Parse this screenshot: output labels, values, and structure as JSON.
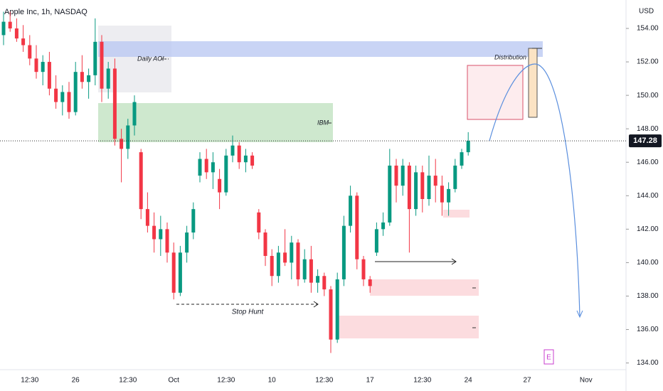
{
  "chart_data": {
    "type": "candlestick",
    "title": "Apple Inc, 1h, NASDAQ",
    "currency": "USD",
    "categories": [
      null,
      null,
      null,
      null,
      "12:30",
      null,
      null,
      null,
      null,
      null,
      null,
      "26",
      null,
      null,
      null,
      null,
      null,
      null,
      null,
      "12:30",
      null,
      null,
      null,
      null,
      null,
      null,
      "Oct",
      null,
      null,
      null,
      null,
      null,
      null,
      null,
      "12:30",
      null,
      null,
      null,
      null,
      null,
      null,
      "10",
      null,
      null,
      null,
      null,
      null,
      null,
      null,
      "12:30",
      null,
      null,
      null,
      null,
      null,
      null,
      "17",
      null,
      null,
      null,
      null,
      null,
      null,
      null,
      "12:30",
      null,
      null,
      null,
      null,
      null,
      null,
      "24",
      null,
      null,
      null,
      null,
      null,
      null,
      null,
      null,
      "27",
      null,
      null,
      null,
      null,
      null,
      null,
      null,
      null,
      "Nov"
    ],
    "open": [
      153.6,
      154.4,
      154.0,
      153.4,
      153.0,
      152.2,
      151.4,
      152.0,
      150.4,
      149.6,
      150.2,
      149.0,
      151.4,
      150.8,
      151.2,
      153.2,
      150.4,
      151.6,
      147.4,
      146.8,
      148.2,
      146.6,
      143.2,
      142.2,
      141.4,
      142.0,
      140.6,
      138.2,
      140.6,
      141.8,
      145.2,
      146.2,
      145.4,
      145.0,
      144.2,
      146.4,
      147.0,
      146.0,
      146.4,
      143.0,
      141.8,
      140.4,
      139.2,
      140.6,
      140.0,
      141.2,
      139.0,
      140.2,
      138.8,
      139.2,
      138.4,
      135.4,
      139.0,
      142.2,
      144.0,
      140.2,
      139.0,
      140.6,
      142.0,
      142.4,
      145.8,
      144.6,
      145.8,
      143.2,
      145.4,
      143.8,
      145.2,
      144.6,
      143.6,
      144.4,
      145.8,
      146.6,
      null,
      null,
      null,
      null,
      null,
      null,
      null,
      null,
      null,
      null,
      null,
      null,
      null,
      null,
      null,
      null,
      null,
      null
    ],
    "high": [
      155.0,
      155.0,
      154.6,
      154.2,
      153.6,
      153.0,
      152.4,
      152.6,
      151.2,
      150.6,
      150.8,
      152.0,
      152.4,
      151.6,
      154.6,
      153.6,
      152.0,
      152.2,
      148.0,
      148.6,
      150.0,
      146.8,
      144.2,
      143.0,
      142.8,
      142.4,
      141.2,
      141.0,
      142.2,
      143.6,
      146.6,
      146.8,
      146.6,
      145.6,
      146.8,
      147.6,
      147.2,
      146.8,
      146.6,
      143.2,
      142.0,
      140.8,
      141.0,
      142.0,
      141.6,
      141.4,
      140.8,
      141.0,
      139.6,
      139.4,
      138.6,
      139.4,
      142.8,
      144.6,
      144.2,
      140.4,
      139.2,
      142.4,
      143.0,
      146.8,
      146.2,
      146.2,
      146.0,
      145.8,
      145.8,
      146.4,
      146.2,
      145.2,
      144.8,
      146.2,
      146.8,
      147.8,
      null,
      null,
      null,
      null,
      null,
      null,
      null,
      null,
      null,
      null,
      null,
      null,
      null,
      null,
      null,
      null,
      null,
      null
    ],
    "low": [
      153.0,
      153.8,
      153.2,
      152.6,
      151.8,
      151.0,
      150.6,
      150.0,
      149.2,
      148.8,
      148.6,
      148.8,
      150.4,
      149.8,
      150.6,
      149.6,
      149.8,
      147.0,
      144.8,
      146.2,
      147.6,
      142.6,
      141.8,
      140.6,
      140.4,
      140.0,
      137.8,
      138.0,
      140.0,
      141.4,
      144.8,
      145.0,
      144.4,
      143.2,
      144.0,
      146.0,
      145.6,
      145.4,
      145.6,
      141.4,
      139.8,
      138.6,
      138.8,
      139.8,
      139.0,
      138.6,
      138.8,
      138.2,
      138.2,
      138.0,
      134.6,
      135.2,
      138.6,
      141.8,
      139.6,
      138.6,
      138.2,
      140.4,
      141.6,
      142.2,
      143.6,
      144.0,
      140.6,
      142.8,
      143.0,
      143.4,
      143.6,
      142.8,
      142.8,
      144.2,
      145.6,
      146.4,
      null,
      null,
      null,
      null,
      null,
      null,
      null,
      null,
      null,
      null,
      null,
      null,
      null,
      null,
      null,
      null,
      null,
      null
    ],
    "close": [
      154.4,
      154.0,
      153.4,
      153.0,
      152.2,
      151.4,
      152.0,
      150.4,
      149.6,
      150.2,
      149.0,
      151.4,
      150.8,
      151.2,
      153.2,
      150.4,
      151.6,
      147.4,
      146.8,
      148.2,
      149.6,
      143.2,
      142.2,
      141.4,
      142.0,
      140.6,
      138.2,
      140.6,
      141.8,
      143.2,
      146.2,
      145.4,
      146.0,
      144.2,
      146.4,
      147.0,
      146.0,
      146.4,
      145.8,
      141.8,
      140.4,
      139.2,
      140.6,
      140.0,
      141.2,
      139.0,
      140.2,
      138.8,
      139.2,
      138.4,
      135.4,
      139.0,
      142.2,
      144.0,
      140.2,
      139.0,
      138.6,
      142.0,
      142.4,
      145.8,
      144.6,
      145.8,
      143.2,
      145.4,
      143.8,
      145.2,
      144.6,
      143.6,
      144.4,
      145.8,
      146.6,
      147.28,
      null,
      null,
      null,
      null,
      null,
      null,
      null,
      null,
      null,
      null,
      null,
      null,
      null,
      null,
      null,
      null,
      null,
      null
    ],
    "up_color": "#089981",
    "down_color": "#f23645",
    "last_price": 147.28,
    "ylim": [
      133.6,
      155.7
    ],
    "yticks": [
      {
        "value": 134,
        "label": "134.00"
      },
      {
        "value": 136,
        "label": "136.00"
      },
      {
        "value": 138,
        "label": "138.00"
      },
      {
        "value": 140,
        "label": "140.00"
      },
      {
        "value": 142,
        "label": "142.00"
      },
      {
        "value": 144,
        "label": "144.00"
      },
      {
        "value": 146,
        "label": "146.00"
      },
      {
        "value": 148,
        "label": "148.00"
      },
      {
        "value": 150,
        "label": "150.00"
      },
      {
        "value": 152,
        "label": "152.00"
      },
      {
        "value": 154,
        "label": "154.00"
      }
    ],
    "annotations": [
      "Daily AOI",
      "IBM",
      "Distribution",
      "Stop Hunt",
      "E"
    ]
  }
}
